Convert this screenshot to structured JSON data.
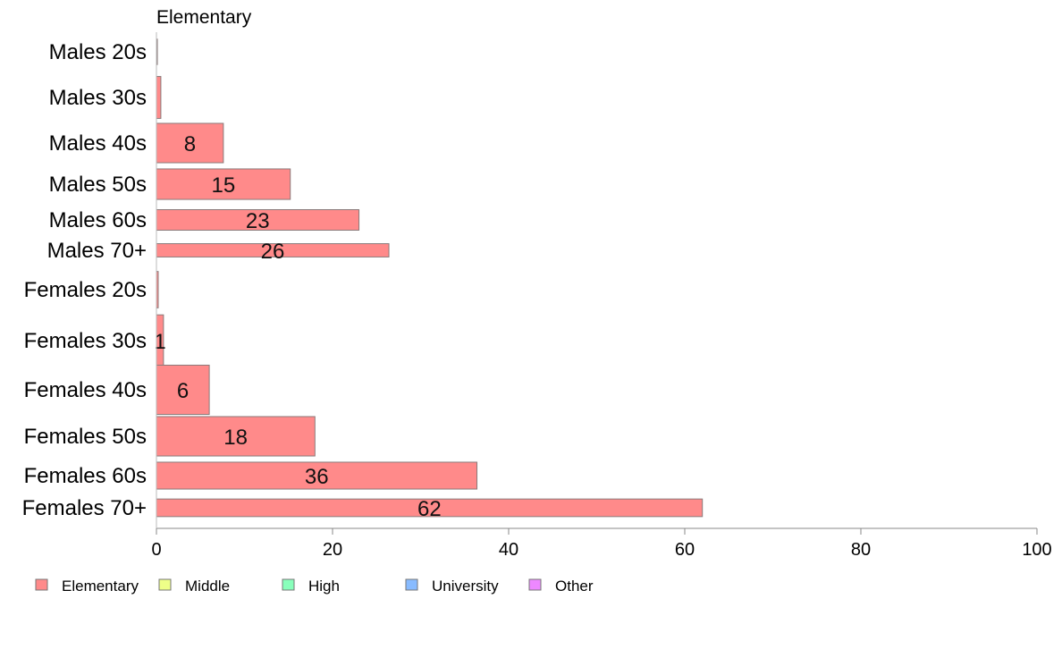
{
  "chart_data": {
    "type": "bar",
    "orientation": "horizontal",
    "title": "Elementary",
    "categories": [
      "Males 20s",
      "Males 30s",
      "Males 40s",
      "Males 50s",
      "Males 60s",
      "Males 70+",
      "Females 20s",
      "Females 30s",
      "Females 40s",
      "Females 50s",
      "Females 60s",
      "Females 70+"
    ],
    "values": [
      0,
      0.5,
      7.6,
      15.2,
      23,
      26.4,
      0.2,
      0.8,
      6,
      18,
      36.4,
      62
    ],
    "value_labels": [
      "",
      "",
      "8",
      "15",
      "23",
      "26",
      "",
      "1",
      "6",
      "18",
      "36",
      "62"
    ],
    "bar_relative_heights": [
      0.52,
      0.66,
      0.62,
      0.52,
      0.42,
      0.32,
      0.62,
      0.74,
      0.72,
      0.62,
      0.5,
      0.4
    ],
    "xlim": [
      0,
      100
    ],
    "xticks": [
      0,
      20,
      40,
      60,
      80,
      100
    ],
    "grid": false,
    "bar_color": "#ff8a8a",
    "bar_border": "#8a7a7a",
    "legend": {
      "position": "bottom-left",
      "entries": [
        {
          "label": "Elementary",
          "color": "#ff8a8a"
        },
        {
          "label": "Middle",
          "color": "#eeff88"
        },
        {
          "label": "High",
          "color": "#88ffbb"
        },
        {
          "label": "University",
          "color": "#88bbff"
        },
        {
          "label": "Other",
          "color": "#ee88ff"
        }
      ]
    }
  }
}
